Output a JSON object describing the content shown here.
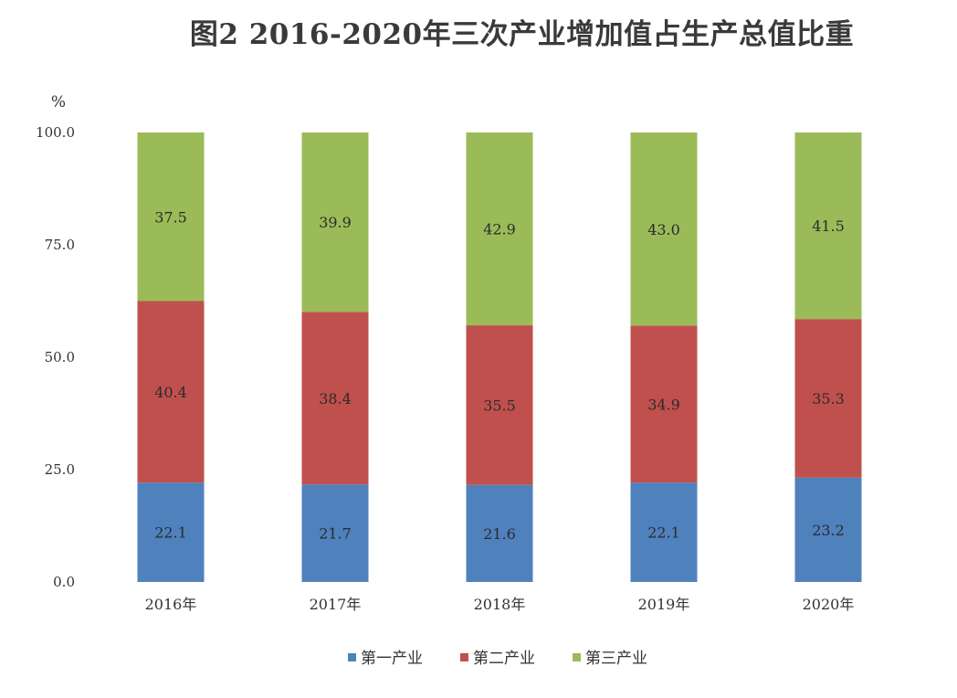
{
  "chart_data": {
    "type": "bar",
    "stacked": true,
    "title": "图2  2016-2020年三次产业增加值占生产总值比重",
    "ylabel": "%",
    "xlabel": "",
    "ylim": [
      0,
      100
    ],
    "yticks": [
      "0.0",
      "25.0",
      "50.0",
      "75.0",
      "100.0"
    ],
    "categories": [
      "2016年",
      "2017年",
      "2018年",
      "2019年",
      "2020年"
    ],
    "series": [
      {
        "name": "第一产业",
        "color": "#4f81bd",
        "values": [
          22.1,
          21.7,
          21.6,
          22.1,
          23.2
        ]
      },
      {
        "name": "第二产业",
        "color": "#c0504d",
        "values": [
          40.4,
          38.4,
          35.5,
          34.9,
          35.3
        ]
      },
      {
        "name": "第三产业",
        "color": "#9bbb59",
        "values": [
          37.5,
          39.9,
          42.9,
          43.0,
          41.5
        ]
      }
    ],
    "grid": false,
    "legend_position": "bottom"
  }
}
